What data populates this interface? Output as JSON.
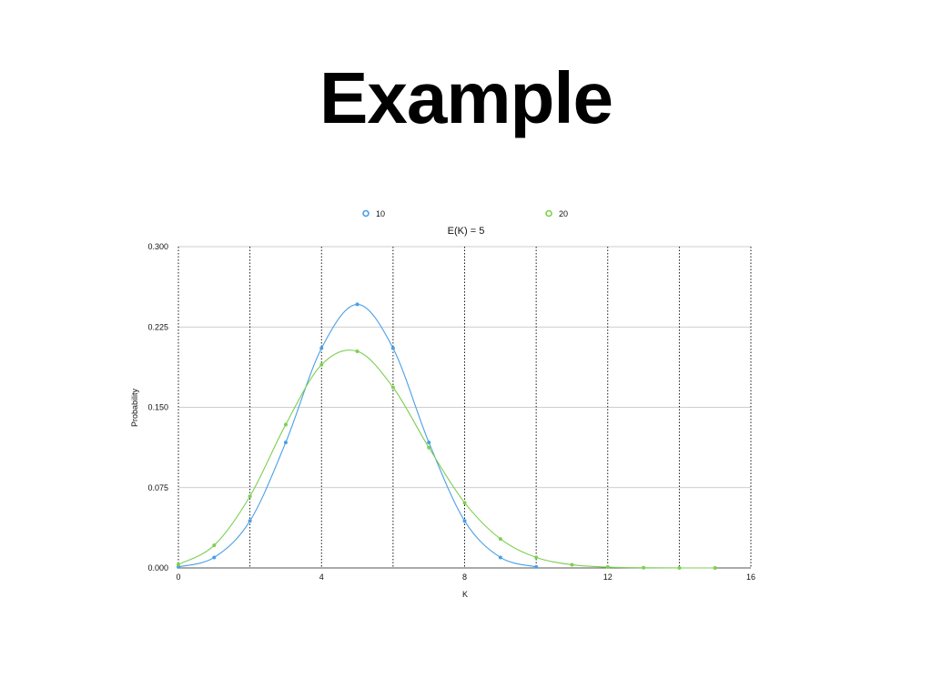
{
  "slide": {
    "title": "Example"
  },
  "colors": {
    "series_10": "#4a9fe6",
    "series_20": "#7ecf52",
    "grid_major": "#bdbdbd",
    "grid_vertical": "#000000"
  },
  "chart_data": {
    "type": "line",
    "title": "E(K) = 5",
    "xlabel": "K",
    "ylabel": "Probability",
    "xlim": [
      0,
      16
    ],
    "ylim": [
      0,
      0.3
    ],
    "xticks": [
      0,
      4,
      8,
      12,
      16
    ],
    "xtick_labels": [
      "0",
      "4",
      "8",
      "12",
      "16"
    ],
    "yticks": [
      0,
      0.075,
      0.15,
      0.225,
      0.3
    ],
    "ytick_labels": [
      "0.000",
      "0.075",
      "0.150",
      "0.225",
      "0.300"
    ],
    "vertical_gridlines_dotted": [
      0,
      2,
      4,
      6,
      8,
      10,
      12,
      14,
      16
    ],
    "grid": true,
    "legend_position": "top",
    "smooth": true,
    "series": [
      {
        "name": "10",
        "color": "#4a9fe6",
        "x": [
          0,
          1,
          2,
          3,
          4,
          5,
          6,
          7,
          8,
          9,
          10
        ],
        "y": [
          0.001,
          0.0098,
          0.0439,
          0.1172,
          0.2051,
          0.2461,
          0.2051,
          0.1172,
          0.0439,
          0.0098,
          0.001
        ]
      },
      {
        "name": "20",
        "color": "#7ecf52",
        "x": [
          0,
          1,
          2,
          3,
          4,
          5,
          6,
          7,
          8,
          9,
          10,
          11,
          12,
          13,
          14,
          15
        ],
        "y": [
          0.0032,
          0.0211,
          0.0669,
          0.1339,
          0.1897,
          0.2023,
          0.1686,
          0.1124,
          0.0609,
          0.0271,
          0.0099,
          0.003,
          0.0008,
          0.0002,
          0.0,
          0.0
        ]
      }
    ]
  }
}
